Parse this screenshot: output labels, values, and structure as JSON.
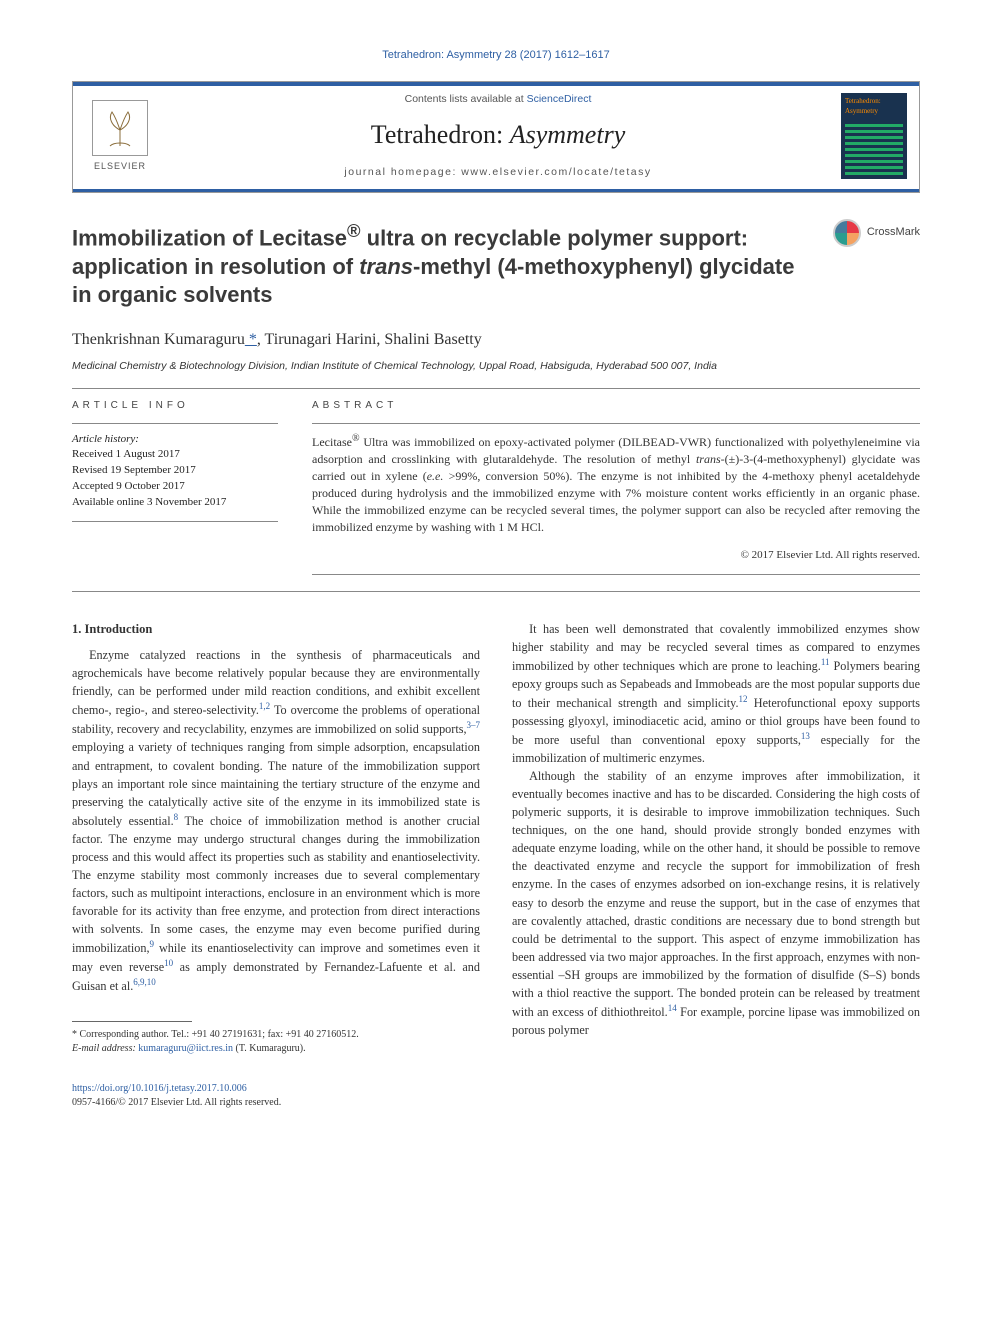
{
  "running_head": "Tetrahedron: Asymmetry 28 (2017) 1612–1617",
  "masthead": {
    "contents_prefix": "Contents lists available at ",
    "contents_link": "ScienceDirect",
    "journal_plain": "Tetrahedron: ",
    "journal_ital": "Asymmetry",
    "homepage_label": "journal homepage: www.elsevier.com/locate/tetasy",
    "publisher_name": "ELSEVIER",
    "cover_title": "Tetrahedron: Asymmetry"
  },
  "crossmark_label": "CrossMark",
  "title_html": "Immobilization of Lecitase<sup>®</sup> ultra on recyclable polymer support: application in resolution of <i>trans</i>-methyl (4-methoxyphenyl) glycidate in organic solvents",
  "authors": {
    "list": "Thenkrishnan Kumaraguru",
    "corr_marker": " *",
    "rest": ", Tirunagari Harini, Shalini Basetty"
  },
  "affiliation": "Medicinal Chemistry & Biotechnology Division, Indian Institute of Chemical Technology, Uppal Road, Habsiguda, Hyderabad 500 007, India",
  "info_heading": "ARTICLE INFO",
  "history_label": "Article history:",
  "history": [
    "Received 1 August 2017",
    "Revised 19 September 2017",
    "Accepted 9 October 2017",
    "Available online 3 November 2017"
  ],
  "abstract_heading": "ABSTRACT",
  "abstract_html": "Lecitase<sup>®</sup> Ultra was immobilized on epoxy-activated polymer (DILBEAD-VWR) functionalized with polyethyleneimine via adsorption and crosslinking with glutaraldehyde. The resolution of methyl <i>trans</i>-(±)-3-(4-methoxyphenyl) glycidate was carried out in xylene (<i>e.e.</i> >99%, conversion 50%). The enzyme is not inhibited by the 4-methoxy phenyl acetaldehyde produced during hydrolysis and the immobilized enzyme with 7% moisture content works efficiently in an organic phase. While the immobilized enzyme can be recycled several times, the polymer support can also be recycled after removing the immobilized enzyme by washing with 1 M HCl.",
  "abstract_copyright": "© 2017 Elsevier Ltd. All rights reserved.",
  "section1_heading": "1. Introduction",
  "para1_html": "Enzyme catalyzed reactions in the synthesis of pharmaceuticals and agrochemicals have become relatively popular because they are environmentally friendly, can be performed under mild reaction conditions, and exhibit excellent chemo-, regio-, and stereo-selectivity.<sup class='sup'>1,2</sup> To overcome the problems of operational stability, recovery and recyclability, enzymes are immobilized on solid supports,<sup class='sup'>3–7</sup> employing a variety of techniques ranging from simple adsorption, encapsulation and entrapment, to covalent bonding. The nature of the immobilization support plays an important role since maintaining the tertiary structure of the enzyme and preserving the catalytically active site of the enzyme in its immobilized state is absolutely essential.<sup class='sup'>8</sup> The choice of immobilization method is another crucial factor. The enzyme may undergo structural changes during the immobilization process and this would affect its properties such as stability and enantioselectivity. The enzyme stability most commonly increases due to several complementary factors, such as multipoint interactions, enclosure in an environment which is more favorable for its activity than free enzyme, and protection from direct interactions with solvents. In some cases, the enzyme may even become purified during immobilization,<sup class='sup'>9</sup> while its enantioselectivity can improve and sometimes even it may even reverse<sup class='sup'>10</sup> as amply demonstrated by Fernandez-Lafuente et al. and Guisan et al.<sup class='sup'>6,9,10</sup>",
  "para2_html": "It has been well demonstrated that covalently immobilized enzymes show higher stability and may be recycled several times as compared to enzymes immobilized by other techniques which are prone to leaching.<sup class='sup'>11</sup> Polymers bearing epoxy groups such as Sepabeads and Immobeads are the most popular supports due to their mechanical strength and simplicity.<sup class='sup'>12</sup> Heterofunctional epoxy supports possessing glyoxyl, iminodiacetic acid, amino or thiol groups have been found to be more useful than conventional epoxy supports,<sup class='sup'>13</sup> especially for the immobilization of multimeric enzymes.",
  "para3_html": "Although the stability of an enzyme improves after immobilization, it eventually becomes inactive and has to be discarded. Considering the high costs of polymeric supports, it is desirable to improve immobilization techniques. Such techniques, on the one hand, should provide strongly bonded enzymes with adequate enzyme loading, while on the other hand, it should be possible to remove the deactivated enzyme and recycle the support for immobilization of fresh enzyme. In the cases of enzymes adsorbed on ion-exchange resins, it is relatively easy to desorb the enzyme and reuse the support, but in the case of enzymes that are covalently attached, drastic conditions are necessary due to bond strength but could be detrimental to the support. This aspect of enzyme immobilization has been addressed via two major approaches. In the first approach, enzymes with non-essential –SH groups are immobilized by the formation of disulfide (S–S) bonds with a thiol reactive the support. The bonded protein can be released by treatment with an excess of dithiothreitol.<sup class='sup'>14</sup> For example, porcine lipase was immobilized on porous polymer",
  "footnotes": {
    "corr": "* Corresponding author. Tel.: +91 40 27191631; fax: +91 40 27160512.",
    "email_label": "E-mail address: ",
    "email": "kumaraguru@iict.res.in",
    "email_suffix": " (T. Kumaraguru)."
  },
  "doi": {
    "url": "https://doi.org/10.1016/j.tetasy.2017.10.006",
    "issn_line": "0957-4166/© 2017 Elsevier Ltd. All rights reserved."
  },
  "colors": {
    "link": "#2e5fa3",
    "rule": "#888888",
    "text": "#333333",
    "masthead_bar": "#2e5fa3"
  }
}
